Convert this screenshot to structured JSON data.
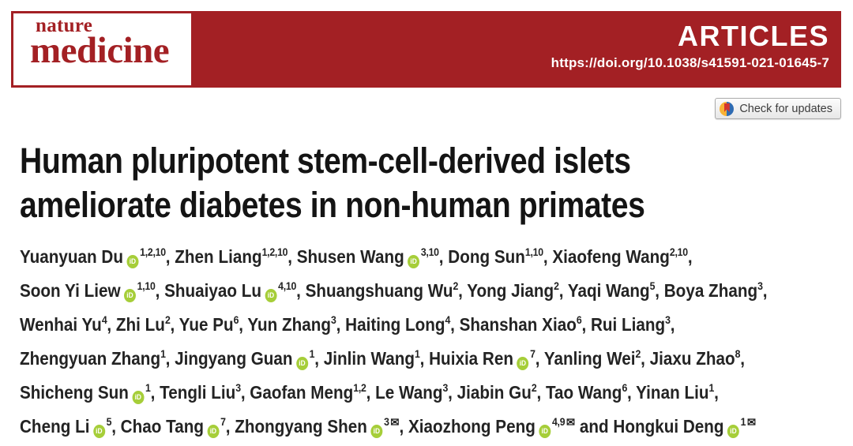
{
  "banner": {
    "logo": {
      "line1": "nature",
      "line2": "medicine"
    },
    "section": "ARTICLES",
    "doi": "https://doi.org/10.1038/s41591-021-01645-7"
  },
  "update_badge": {
    "label": "Check for updates"
  },
  "title": {
    "line1": "Human pluripotent stem-cell-derived islets",
    "line2": "ameliorate diabetes in non-human primates"
  },
  "icons": {
    "orcid": "iD",
    "email": "✉",
    "crossmark": "circle-bookmark"
  },
  "colors": {
    "banner_red": "#a32024",
    "orcid_green": "#a6ce39"
  },
  "authors": {
    "lines": [
      [
        {
          "name": "Yuanyuan Du",
          "orcid": true,
          "sup": "1,2,10",
          "mail": false,
          "tail": ", "
        },
        {
          "name": "Zhen Liang",
          "orcid": false,
          "sup": "1,2,10",
          "mail": false,
          "tail": ", "
        },
        {
          "name": "Shusen Wang",
          "orcid": true,
          "sup": "3,10",
          "mail": false,
          "tail": ", "
        },
        {
          "name": "Dong Sun",
          "orcid": false,
          "sup": "1,10",
          "mail": false,
          "tail": ", "
        },
        {
          "name": "Xiaofeng Wang",
          "orcid": false,
          "sup": "2,10",
          "mail": false,
          "tail": ","
        }
      ],
      [
        {
          "name": "Soon Yi Liew",
          "orcid": true,
          "sup": "1,10",
          "mail": false,
          "tail": ", "
        },
        {
          "name": "Shuaiyao Lu",
          "orcid": true,
          "sup": "4,10",
          "mail": false,
          "tail": ", "
        },
        {
          "name": "Shuangshuang Wu",
          "orcid": false,
          "sup": "2",
          "mail": false,
          "tail": ", "
        },
        {
          "name": "Yong Jiang",
          "orcid": false,
          "sup": "2",
          "mail": false,
          "tail": ", "
        },
        {
          "name": "Yaqi Wang",
          "orcid": false,
          "sup": "5",
          "mail": false,
          "tail": ", "
        },
        {
          "name": "Boya Zhang",
          "orcid": false,
          "sup": "3",
          "mail": false,
          "tail": ","
        }
      ],
      [
        {
          "name": "Wenhai Yu",
          "orcid": false,
          "sup": "4",
          "mail": false,
          "tail": ", "
        },
        {
          "name": "Zhi Lu",
          "orcid": false,
          "sup": "2",
          "mail": false,
          "tail": ", "
        },
        {
          "name": "Yue Pu",
          "orcid": false,
          "sup": "6",
          "mail": false,
          "tail": ", "
        },
        {
          "name": "Yun Zhang",
          "orcid": false,
          "sup": "3",
          "mail": false,
          "tail": ", "
        },
        {
          "name": "Haiting Long",
          "orcid": false,
          "sup": "4",
          "mail": false,
          "tail": ", "
        },
        {
          "name": "Shanshan Xiao",
          "orcid": false,
          "sup": "6",
          "mail": false,
          "tail": ", "
        },
        {
          "name": "Rui Liang",
          "orcid": false,
          "sup": "3",
          "mail": false,
          "tail": ","
        }
      ],
      [
        {
          "name": "Zhengyuan Zhang",
          "orcid": false,
          "sup": "1",
          "mail": false,
          "tail": ", "
        },
        {
          "name": "Jingyang Guan",
          "orcid": true,
          "sup": "1",
          "mail": false,
          "tail": ", "
        },
        {
          "name": "Jinlin Wang",
          "orcid": false,
          "sup": "1",
          "mail": false,
          "tail": ", "
        },
        {
          "name": "Huixia Ren",
          "orcid": true,
          "sup": "7",
          "mail": false,
          "tail": ", "
        },
        {
          "name": "Yanling Wei",
          "orcid": false,
          "sup": "2",
          "mail": false,
          "tail": ", "
        },
        {
          "name": "Jiaxu Zhao",
          "orcid": false,
          "sup": "8",
          "mail": false,
          "tail": ","
        }
      ],
      [
        {
          "name": "Shicheng Sun",
          "orcid": true,
          "sup": "1",
          "mail": false,
          "tail": ", "
        },
        {
          "name": "Tengli Liu",
          "orcid": false,
          "sup": "3",
          "mail": false,
          "tail": ", "
        },
        {
          "name": "Gaofan Meng",
          "orcid": false,
          "sup": "1,2",
          "mail": false,
          "tail": ", "
        },
        {
          "name": "Le Wang",
          "orcid": false,
          "sup": "3",
          "mail": false,
          "tail": ", "
        },
        {
          "name": "Jiabin Gu",
          "orcid": false,
          "sup": "2",
          "mail": false,
          "tail": ", "
        },
        {
          "name": "Tao Wang",
          "orcid": false,
          "sup": "6",
          "mail": false,
          "tail": ", "
        },
        {
          "name": "Yinan Liu",
          "orcid": false,
          "sup": "1",
          "mail": false,
          "tail": ","
        }
      ],
      [
        {
          "name": "Cheng Li",
          "orcid": true,
          "sup": "5",
          "mail": false,
          "tail": ", "
        },
        {
          "name": "Chao Tang",
          "orcid": true,
          "sup": "7",
          "mail": false,
          "tail": ", "
        },
        {
          "name": "Zhongyang Shen",
          "orcid": true,
          "sup": "3",
          "mail": true,
          "tail": ", "
        },
        {
          "name": "Xiaozhong Peng",
          "orcid": true,
          "sup": "4,9",
          "mail": true,
          "tail": " and "
        },
        {
          "name": "Hongkui Deng",
          "orcid": true,
          "sup": "1",
          "mail": true,
          "tail": ""
        }
      ]
    ]
  }
}
